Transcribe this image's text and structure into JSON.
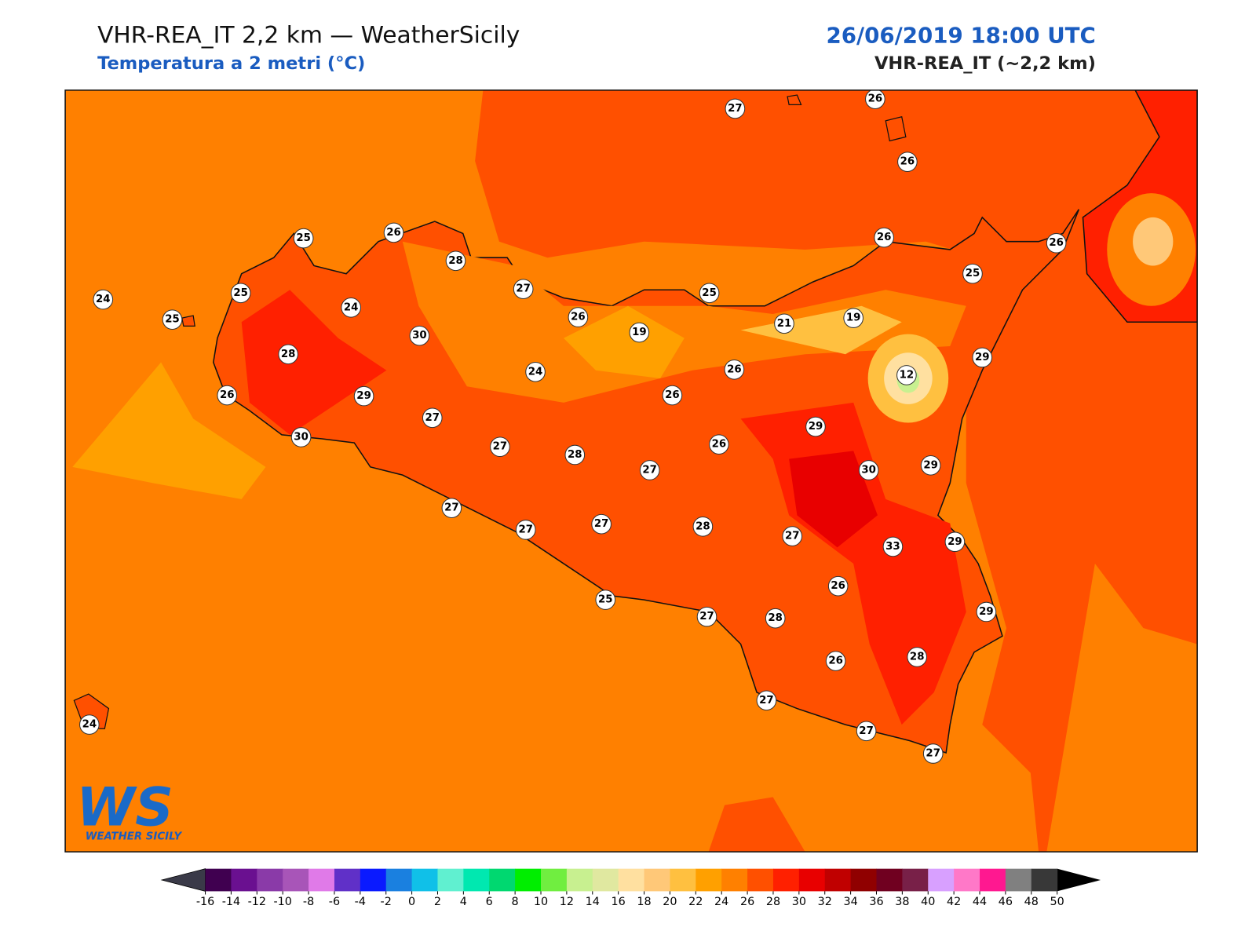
{
  "header": {
    "title": "VHR-REA_IT 2,2 km — WeatherSicily",
    "subtitle": "Temperatura a 2 metri (°C)",
    "date": "26/06/2019 18:00 UTC",
    "model": "VHR-REA_IT (~2,2 km)"
  },
  "logo": {
    "mark": "WS",
    "name": "WEATHER SICILY"
  },
  "stations": [
    27,
    26,
    26,
    25,
    26,
    28,
    24,
    25,
    25,
    24,
    27,
    25,
    26,
    26,
    25,
    30,
    26,
    19,
    21,
    19,
    28,
    29,
    12,
    24,
    26,
    26,
    29,
    27,
    26,
    29,
    30,
    27,
    28,
    27,
    26,
    30,
    29,
    27,
    27,
    27,
    28,
    27,
    33,
    29,
    26,
    25,
    27,
    28,
    29,
    26,
    28,
    24,
    27,
    27,
    27
  ],
  "colorbar": {
    "ticks": [
      -16,
      -14,
      -12,
      -10,
      -8,
      -6,
      -4,
      -2,
      0,
      2,
      4,
      6,
      8,
      10,
      12,
      14,
      16,
      18,
      20,
      22,
      24,
      26,
      28,
      30,
      32,
      34,
      36,
      38,
      40,
      42,
      44,
      46,
      48,
      50
    ],
    "colors": [
      "#400050",
      "#6a1090",
      "#8a3aa8",
      "#a855b8",
      "#e07ae8",
      "#6030c8",
      "#0a1aff",
      "#1a80e0",
      "#10c0e8",
      "#60f0d0",
      "#00e8b0",
      "#00d870",
      "#00ee00",
      "#70ee40",
      "#c8f090",
      "#e0e8a0",
      "#ffe0a0",
      "#ffc878",
      "#ffc040",
      "#ffa000",
      "#ff8000",
      "#ff5000",
      "#ff2000",
      "#e80000",
      "#c00000",
      "#900000",
      "#700020",
      "#782048",
      "#d8a0ff",
      "#ff78c8",
      "#ff1890",
      "#808080",
      "#383838"
    ],
    "under_color": "#3a3a48",
    "over_color": "#000000"
  }
}
